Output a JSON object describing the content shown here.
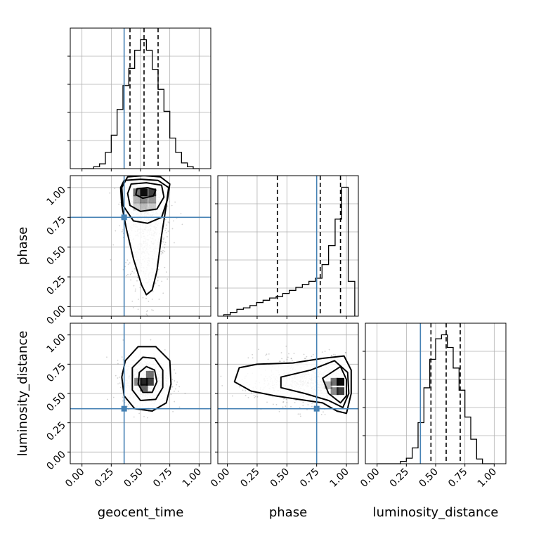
{
  "chart_data": {
    "type": "corner",
    "parameters": [
      "geocent_time",
      "phase",
      "luminosity_distance"
    ],
    "xlabels": [
      "geocent_time",
      "phase",
      "luminosity_distance"
    ],
    "ylabels": [
      "phase",
      "luminosity_distance"
    ],
    "ticks": [
      0.0,
      0.25,
      0.5,
      0.75,
      1.0
    ],
    "tick_labels": [
      "0.00",
      "0.25",
      "0.50",
      "0.75",
      "1.00"
    ],
    "ranges": [
      [
        -0.1,
        1.1
      ],
      [
        -0.08,
        1.1
      ],
      [
        -0.1,
        1.1
      ]
    ],
    "truths": [
      0.36,
      0.75,
      0.37
    ],
    "truth_color": "#4682b4",
    "quantiles": [
      [
        0.41,
        0.53,
        0.65
      ],
      [
        0.42,
        0.78,
        0.95
      ],
      [
        0.46,
        0.59,
        0.71
      ]
    ],
    "histograms": [
      {
        "parameter": "geocent_time",
        "bin_edges": [
          0.0,
          0.05,
          0.1,
          0.15,
          0.2,
          0.25,
          0.3,
          0.35,
          0.4,
          0.45,
          0.5,
          0.55,
          0.6,
          0.65,
          0.7,
          0.75,
          0.8,
          0.85,
          0.9,
          0.95,
          1.0
        ],
        "heights": [
          0,
          0,
          2,
          5,
          17,
          35,
          62,
          87,
          105,
          124,
          135,
          124,
          104,
          83,
          60,
          32,
          17,
          6,
          2,
          0
        ]
      },
      {
        "parameter": "phase",
        "bin_edges": [
          -0.03,
          0.025,
          0.08,
          0.135,
          0.19,
          0.245,
          0.3,
          0.355,
          0.41,
          0.465,
          0.52,
          0.575,
          0.63,
          0.685,
          0.74,
          0.795,
          0.85,
          0.905,
          0.96,
          1.015,
          1.07
        ],
        "heights": [
          2,
          5,
          9,
          11,
          14,
          18,
          21,
          24,
          26,
          30,
          34,
          38,
          42,
          46,
          50,
          68,
          93,
          128,
          170,
          46
        ]
      },
      {
        "parameter": "luminosity_distance",
        "bin_edges": [
          0.0,
          0.05,
          0.1,
          0.15,
          0.2,
          0.25,
          0.3,
          0.35,
          0.4,
          0.45,
          0.5,
          0.55,
          0.6,
          0.65,
          0.7,
          0.75,
          0.8,
          0.85,
          0.9,
          0.95,
          1.0
        ],
        "heights": [
          0,
          0,
          0,
          0,
          3,
          7,
          20,
          52,
          96,
          132,
          158,
          163,
          147,
          121,
          93,
          59,
          31,
          6,
          0,
          0
        ]
      }
    ],
    "panels_2d": [
      {
        "x": "geocent_time",
        "y": "phase",
        "mean": [
          0.55,
          0.58
        ],
        "spread": [
          0.09,
          0.3
        ],
        "contours": [
          [
            [
              0.36,
              1.06
            ],
            [
              0.5,
              1.07
            ],
            [
              0.65,
              1.06
            ],
            [
              0.74,
              1.0
            ],
            [
              0.72,
              0.85
            ],
            [
              0.68,
              0.6
            ],
            [
              0.64,
              0.3
            ],
            [
              0.6,
              0.14
            ],
            [
              0.55,
              0.1
            ],
            [
              0.51,
              0.18
            ],
            [
              0.44,
              0.4
            ],
            [
              0.38,
              0.65
            ],
            [
              0.34,
              0.85
            ],
            [
              0.33,
              1.0
            ]
          ],
          [
            [
              0.42,
              1.03
            ],
            [
              0.55,
              1.04
            ],
            [
              0.68,
              1.02
            ],
            [
              0.7,
              0.92
            ],
            [
              0.64,
              0.82
            ],
            [
              0.5,
              0.8
            ],
            [
              0.41,
              0.85
            ],
            [
              0.39,
              0.95
            ]
          ],
          [
            [
              0.47,
              0.99
            ],
            [
              0.56,
              1.0
            ],
            [
              0.63,
              0.98
            ],
            [
              0.61,
              0.93
            ],
            [
              0.52,
              0.91
            ],
            [
              0.46,
              0.94
            ]
          ],
          [
            [
              0.39,
              1.09
            ],
            [
              0.53,
              1.1
            ],
            [
              0.67,
              1.09
            ],
            [
              0.75,
              1.03
            ],
            [
              0.73,
              0.9
            ],
            [
              0.68,
              0.75
            ],
            [
              0.56,
              0.7
            ],
            [
              0.44,
              0.72
            ],
            [
              0.35,
              0.85
            ],
            [
              0.34,
              1.0
            ]
          ]
        ],
        "dark_cells": [
          [
            0.53,
            0.96,
            0.95
          ],
          [
            0.6,
            0.96,
            0.75
          ],
          [
            0.47,
            0.96,
            0.55
          ],
          [
            0.53,
            0.9,
            0.45
          ],
          [
            0.6,
            0.9,
            0.4
          ],
          [
            0.47,
            0.9,
            0.3
          ],
          [
            0.53,
            0.84,
            0.25
          ],
          [
            0.6,
            0.84,
            0.2
          ],
          [
            0.47,
            0.84,
            0.18
          ]
        ]
      },
      {
        "x": "geocent_time",
        "y": "luminosity_distance",
        "mean": [
          0.55,
          0.6
        ],
        "spread": [
          0.1,
          0.1
        ],
        "contours": [
          [
            [
              0.37,
              0.78
            ],
            [
              0.48,
              0.9
            ],
            [
              0.63,
              0.9
            ],
            [
              0.75,
              0.78
            ],
            [
              0.76,
              0.58
            ],
            [
              0.72,
              0.42
            ],
            [
              0.6,
              0.35
            ],
            [
              0.45,
              0.37
            ],
            [
              0.36,
              0.48
            ],
            [
              0.34,
              0.64
            ]
          ],
          [
            [
              0.43,
              0.72
            ],
            [
              0.52,
              0.81
            ],
            [
              0.62,
              0.8
            ],
            [
              0.69,
              0.7
            ],
            [
              0.69,
              0.55
            ],
            [
              0.63,
              0.45
            ],
            [
              0.5,
              0.44
            ],
            [
              0.43,
              0.53
            ]
          ],
          [
            [
              0.49,
              0.68
            ],
            [
              0.55,
              0.73
            ],
            [
              0.62,
              0.7
            ],
            [
              0.64,
              0.6
            ],
            [
              0.6,
              0.51
            ],
            [
              0.52,
              0.51
            ],
            [
              0.48,
              0.58
            ]
          ]
        ],
        "dark_cells": [
          [
            0.53,
            0.6,
            0.85
          ],
          [
            0.58,
            0.6,
            0.75
          ],
          [
            0.53,
            0.55,
            0.6
          ],
          [
            0.58,
            0.66,
            0.55
          ],
          [
            0.48,
            0.6,
            0.45
          ]
        ]
      },
      {
        "x": "phase",
        "y": "luminosity_distance",
        "mean": [
          0.75,
          0.6
        ],
        "spread": [
          0.3,
          0.1
        ],
        "contours": [
          [
            [
              0.1,
              0.72
            ],
            [
              0.25,
              0.75
            ],
            [
              0.55,
              0.76
            ],
            [
              0.8,
              0.8
            ],
            [
              0.98,
              0.82
            ],
            [
              1.04,
              0.7
            ],
            [
              1.04,
              0.5
            ],
            [
              1.0,
              0.33
            ],
            [
              0.92,
              0.35
            ],
            [
              0.8,
              0.42
            ],
            [
              0.6,
              0.45
            ],
            [
              0.4,
              0.48
            ],
            [
              0.2,
              0.52
            ],
            [
              0.06,
              0.6
            ]
          ],
          [
            [
              0.45,
              0.64
            ],
            [
              0.7,
              0.7
            ],
            [
              0.9,
              0.78
            ],
            [
              1.01,
              0.68
            ],
            [
              1.02,
              0.5
            ],
            [
              0.97,
              0.38
            ],
            [
              0.85,
              0.44
            ],
            [
              0.65,
              0.5
            ],
            [
              0.45,
              0.55
            ]
          ],
          [
            [
              0.8,
              0.63
            ],
            [
              0.95,
              0.73
            ],
            [
              1.0,
              0.62
            ],
            [
              1.0,
              0.48
            ],
            [
              0.95,
              0.42
            ],
            [
              0.85,
              0.5
            ]
          ]
        ],
        "dark_cells": [
          [
            0.95,
            0.6,
            0.95
          ],
          [
            0.95,
            0.52,
            0.75
          ],
          [
            0.9,
            0.6,
            0.55
          ],
          [
            0.9,
            0.52,
            0.45
          ],
          [
            0.85,
            0.57,
            0.3
          ]
        ]
      }
    ]
  }
}
